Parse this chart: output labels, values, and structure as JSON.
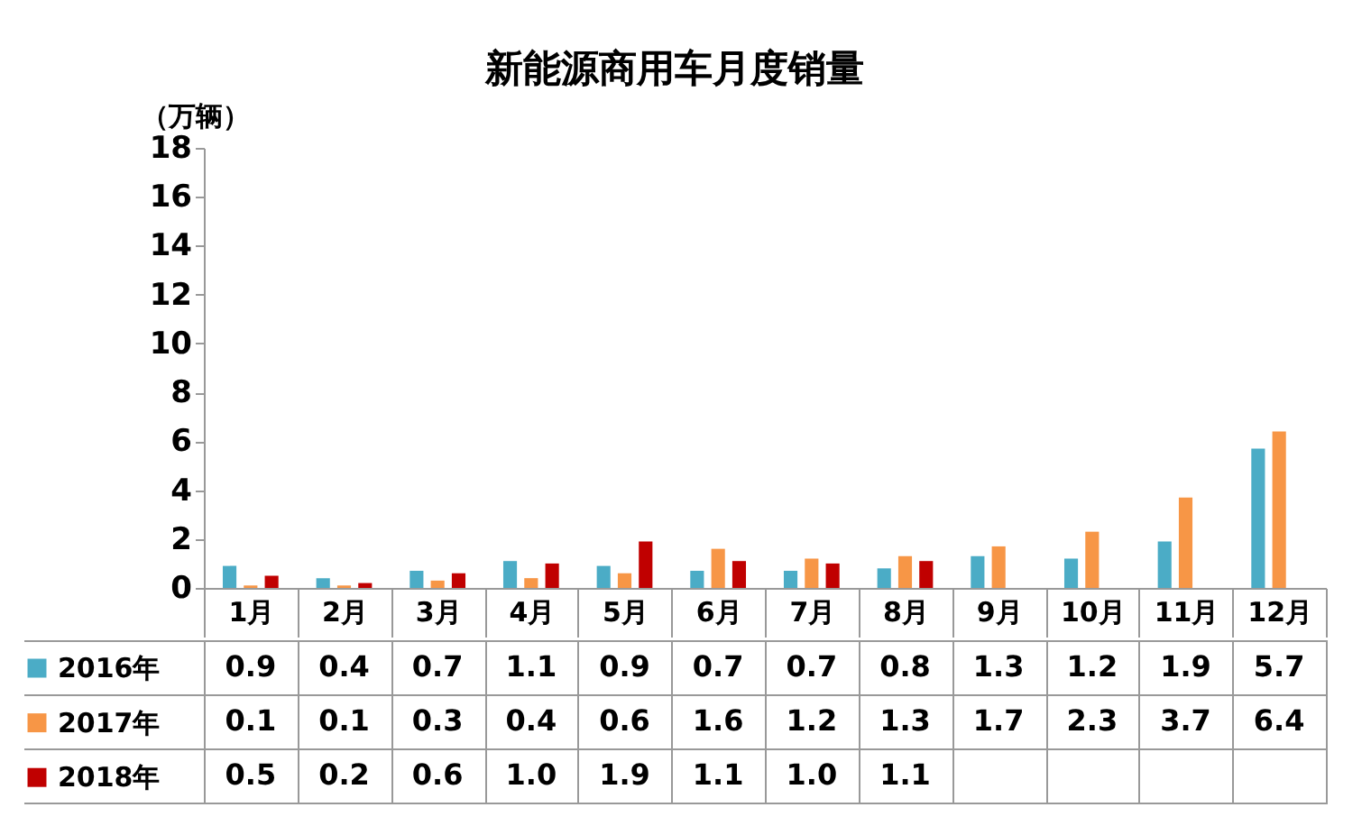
{
  "chart_data": {
    "type": "bar",
    "title": "新能源商用车月度销量",
    "ylabel": "（万辆）",
    "categories": [
      "1月",
      "2月",
      "3月",
      "4月",
      "5月",
      "6月",
      "7月",
      "8月",
      "9月",
      "10月",
      "11月",
      "12月"
    ],
    "series": [
      {
        "name": "2016年",
        "color": "#4bacc6",
        "values": [
          0.9,
          0.4,
          0.7,
          1.1,
          0.9,
          0.7,
          0.7,
          0.8,
          1.3,
          1.2,
          1.9,
          5.7
        ],
        "value_labels": [
          "0.9",
          "0.4",
          "0.7",
          "1.1",
          "0.9",
          "0.7",
          "0.7",
          "0.8",
          "1.3",
          "1.2",
          "1.9",
          "5.7"
        ]
      },
      {
        "name": "2017年",
        "color": "#f79646",
        "values": [
          0.1,
          0.1,
          0.3,
          0.4,
          0.6,
          1.6,
          1.2,
          1.3,
          1.7,
          2.3,
          3.7,
          6.4
        ],
        "value_labels": [
          "0.1",
          "0.1",
          "0.3",
          "0.4",
          "0.6",
          "1.6",
          "1.2",
          "1.3",
          "1.7",
          "2.3",
          "3.7",
          "6.4"
        ]
      },
      {
        "name": "2018年",
        "color": "#c00000",
        "values": [
          0.5,
          0.2,
          0.6,
          1.0,
          1.9,
          1.1,
          1.0,
          1.1,
          null,
          null,
          null,
          null
        ],
        "value_labels": [
          "0.5",
          "0.2",
          "0.6",
          "1.0",
          "1.9",
          "1.1",
          "1.0",
          "1.1",
          null,
          null,
          null,
          null
        ]
      }
    ],
    "ylim": [
      0,
      18
    ],
    "yticks": [
      0,
      2,
      4,
      6,
      8,
      10,
      12,
      14,
      16,
      18
    ],
    "grid": false,
    "legend": "bottom left"
  }
}
